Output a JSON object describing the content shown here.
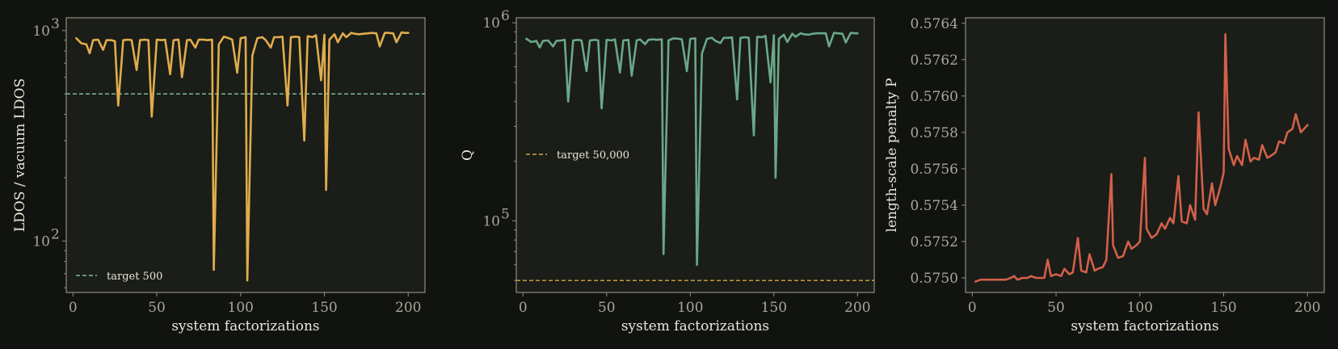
{
  "chart_data": [
    {
      "type": "line",
      "panel": "left",
      "yscale": "log",
      "xlabel": "system factorizations",
      "ylabel": "LDOS / vacuum LDOS",
      "xlim": [
        -4,
        210
      ],
      "ylim": [
        57,
        1150
      ],
      "xticks": [
        0,
        50,
        100,
        150,
        200
      ],
      "yticks": [
        {
          "value": 100,
          "base": "10",
          "exp": "2"
        },
        {
          "value": 1000,
          "base": "10",
          "exp": "3"
        }
      ],
      "legend_position": "lower-left",
      "series": [
        {
          "color": "#e0ac4c",
          "width": 2.6,
          "x": [
            2,
            5,
            8,
            10,
            12,
            15,
            18,
            20,
            23,
            25,
            27,
            30,
            33,
            35,
            38,
            40,
            43,
            45,
            47,
            50,
            53,
            55,
            58,
            60,
            63,
            65,
            68,
            70,
            73,
            75,
            78,
            80,
            83,
            84,
            87,
            90,
            93,
            95,
            98,
            100,
            103,
            104,
            107,
            110,
            113,
            115,
            118,
            120,
            123,
            125,
            128,
            130,
            133,
            135,
            138,
            140,
            143,
            145,
            148,
            150,
            151,
            153,
            156,
            158,
            161,
            163,
            166,
            168,
            171,
            173,
            176,
            178,
            181,
            183,
            186,
            188,
            191,
            193,
            196,
            198,
            200
          ],
          "values": [
            920,
            870,
            860,
            780,
            900,
            905,
            810,
            900,
            900,
            890,
            440,
            900,
            905,
            900,
            650,
            900,
            905,
            900,
            390,
            905,
            900,
            905,
            620,
            900,
            905,
            600,
            900,
            905,
            830,
            905,
            905,
            900,
            905,
            73,
            860,
            935,
            920,
            905,
            630,
            920,
            930,
            65,
            760,
            920,
            930,
            900,
            830,
            930,
            930,
            935,
            440,
            930,
            935,
            930,
            300,
            940,
            930,
            950,
            580,
            955,
            175,
            905,
            960,
            880,
            970,
            930,
            975,
            965,
            960,
            965,
            970,
            975,
            970,
            840,
            975,
            975,
            970,
            880,
            980,
            975,
            975
          ]
        }
      ],
      "reference": {
        "label": "target 500",
        "value": 500,
        "color": "#7fb99a",
        "style": "dashed"
      }
    },
    {
      "type": "line",
      "panel": "middle",
      "yscale": "log",
      "xlabel": "system factorizations",
      "ylabel": "Q",
      "xlim": [
        -4,
        210
      ],
      "ylim": [
        43500,
        1060000
      ],
      "xticks": [
        0,
        50,
        100,
        150,
        200
      ],
      "yticks": [
        {
          "value": 100000,
          "base": "10",
          "exp": "5"
        },
        {
          "value": 1000000,
          "base": "10",
          "exp": "6"
        }
      ],
      "legend_position": "center-left",
      "series": [
        {
          "color": "#6aa88a",
          "width": 2.6,
          "x": [
            2,
            5,
            8,
            10,
            12,
            15,
            18,
            20,
            23,
            25,
            27,
            30,
            33,
            35,
            38,
            40,
            43,
            45,
            47,
            50,
            53,
            55,
            58,
            60,
            63,
            65,
            68,
            70,
            73,
            75,
            78,
            80,
            83,
            84,
            87,
            90,
            93,
            95,
            98,
            100,
            103,
            104,
            107,
            110,
            113,
            115,
            118,
            120,
            123,
            125,
            128,
            130,
            133,
            135,
            138,
            140,
            143,
            145,
            148,
            150,
            151,
            153,
            156,
            158,
            161,
            163,
            166,
            168,
            171,
            173,
            176,
            178,
            181,
            183,
            186,
            188,
            191,
            193,
            196,
            198,
            200
          ],
          "values": [
            830000,
            800000,
            810000,
            750000,
            810000,
            815000,
            760000,
            810000,
            815000,
            820000,
            400000,
            815000,
            820000,
            815000,
            570000,
            815000,
            820000,
            815000,
            370000,
            820000,
            815000,
            825000,
            560000,
            815000,
            820000,
            540000,
            815000,
            825000,
            780000,
            820000,
            825000,
            820000,
            825000,
            68000,
            815000,
            835000,
            830000,
            825000,
            570000,
            830000,
            835000,
            60000,
            700000,
            830000,
            840000,
            810000,
            790000,
            840000,
            840000,
            845000,
            410000,
            840000,
            845000,
            840000,
            270000,
            850000,
            845000,
            860000,
            500000,
            865000,
            165000,
            830000,
            870000,
            800000,
            880000,
            850000,
            885000,
            875000,
            870000,
            880000,
            885000,
            885000,
            885000,
            760000,
            890000,
            885000,
            880000,
            795000,
            890000,
            885000,
            885000
          ]
        }
      ],
      "reference": {
        "label": "target 50,000",
        "value": 50000,
        "color": "#d8a93f",
        "style": "dashed"
      }
    },
    {
      "type": "line",
      "panel": "right",
      "yscale": "linear",
      "xlabel": "system factorizations",
      "ylabel": "length-scale penalty P",
      "xlim": [
        -4,
        210
      ],
      "ylim": [
        0.57492,
        0.57643
      ],
      "xticks": [
        0,
        50,
        100,
        150,
        200
      ],
      "yticks": [
        "0.5750",
        "0.5752",
        "0.5754",
        "0.5756",
        "0.5758",
        "0.5760",
        "0.5762",
        "0.5764"
      ],
      "series": [
        {
          "color": "#d2604a",
          "width": 2.6,
          "x": [
            2,
            5,
            8,
            10,
            12,
            15,
            18,
            20,
            23,
            25,
            27,
            30,
            33,
            35,
            38,
            40,
            43,
            45,
            47,
            50,
            53,
            55,
            58,
            60,
            63,
            65,
            68,
            70,
            73,
            75,
            78,
            80,
            83,
            84,
            87,
            90,
            93,
            95,
            98,
            100,
            103,
            104,
            107,
            110,
            113,
            115,
            118,
            120,
            123,
            125,
            128,
            130,
            133,
            135,
            138,
            140,
            143,
            145,
            148,
            150,
            151,
            153,
            156,
            158,
            161,
            163,
            166,
            168,
            171,
            173,
            176,
            178,
            181,
            183,
            186,
            188,
            191,
            193,
            196,
            198,
            200
          ],
          "values": [
            0.57498,
            0.57499,
            0.57499,
            0.57499,
            0.57499,
            0.57499,
            0.57499,
            0.57499,
            0.575,
            0.57501,
            0.57499,
            0.575,
            0.575,
            0.57501,
            0.575,
            0.575,
            0.575,
            0.5751,
            0.57501,
            0.57502,
            0.57501,
            0.57505,
            0.57502,
            0.57503,
            0.57522,
            0.57504,
            0.57503,
            0.57513,
            0.57504,
            0.57505,
            0.57506,
            0.5751,
            0.57557,
            0.57518,
            0.57511,
            0.57512,
            0.5752,
            0.57516,
            0.57518,
            0.5752,
            0.57566,
            0.57527,
            0.57522,
            0.57524,
            0.5753,
            0.57527,
            0.57533,
            0.5753,
            0.57556,
            0.57531,
            0.5753,
            0.5754,
            0.57532,
            0.57591,
            0.57538,
            0.57535,
            0.57552,
            0.5754,
            0.5755,
            0.57558,
            0.57634,
            0.57571,
            0.57562,
            0.57567,
            0.57562,
            0.57576,
            0.57564,
            0.57566,
            0.57565,
            0.57573,
            0.57566,
            0.57567,
            0.57569,
            0.57575,
            0.57574,
            0.5758,
            0.57582,
            0.5759,
            0.5758,
            0.57582,
            0.57584
          ]
        }
      ]
    }
  ]
}
